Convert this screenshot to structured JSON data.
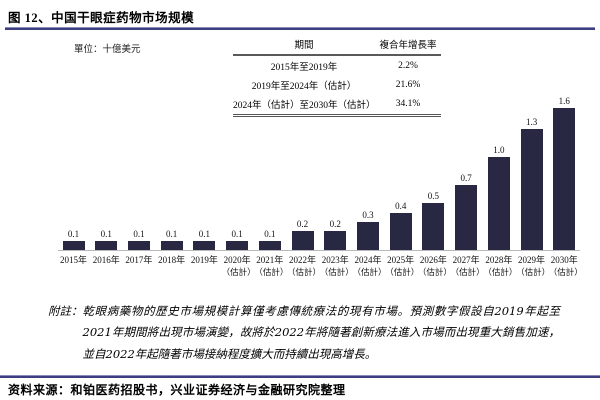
{
  "figure": {
    "title": "图 12、中国干眼症药物市场规模",
    "unit_label": "單位：十億美元"
  },
  "cagr_table": {
    "headers": [
      "期間",
      "複合年增長率"
    ],
    "rows": [
      {
        "period": "2015年至2019年",
        "cagr": "2.2%"
      },
      {
        "period": "2019年至2024年（估計）",
        "cagr": "21.6%"
      },
      {
        "period": "2024年（估計）至2030年（估計）",
        "cagr": "34.1%"
      }
    ]
  },
  "chart_data": {
    "type": "bar",
    "title": "中国干眼症药物市场规模",
    "unit": "十億美元",
    "categories": [
      "2015年",
      "2016年",
      "2017年",
      "2018年",
      "2019年",
      "2020年",
      "2021年",
      "2022年",
      "2023年",
      "2024年",
      "2025年",
      "2026年",
      "2027年",
      "2028年",
      "2029年",
      "2030年"
    ],
    "category_sublabels": [
      "",
      "",
      "",
      "",
      "",
      "（估計）",
      "（估計）",
      "（估計）",
      "（估計）",
      "（估計）",
      "（估計）",
      "（估計）",
      "（估計）",
      "（估計）",
      "（估計）",
      "（估計）"
    ],
    "values": [
      0.1,
      0.1,
      0.1,
      0.1,
      0.1,
      0.1,
      0.1,
      0.2,
      0.2,
      0.3,
      0.4,
      0.5,
      0.7,
      1.0,
      1.3,
      1.6
    ],
    "value_labels": [
      "0.1",
      "0.1",
      "0.1",
      "0.1",
      "0.1",
      "0.1",
      "0.1",
      "0.2",
      "0.2",
      "0.3",
      "0.4",
      "0.5",
      "0.7",
      "1.0",
      "1.3",
      "1.6"
    ],
    "xlabel": "",
    "ylabel": "",
    "ylim": [
      0,
      1.7
    ],
    "grid": false,
    "legend": "none",
    "bar_color": "#282843"
  },
  "footnote": {
    "label": "附註：",
    "text": "乾眼病藥物的歷史市場規模計算僅考慮傳統療法的現有市場。預測數字假設自2019年起至2021年期間將出現市場演變，故將於2022年將隨著創新療法進入市場而出現重大銷售加速，並自2022年起隨著市場接納程度擴大而持續出現高增長。"
  },
  "source": "资料来源：和铂医药招股书，兴业证券经济与金融研究院整理",
  "colors": {
    "bar": "#282843",
    "rule": "#3d3d82"
  }
}
